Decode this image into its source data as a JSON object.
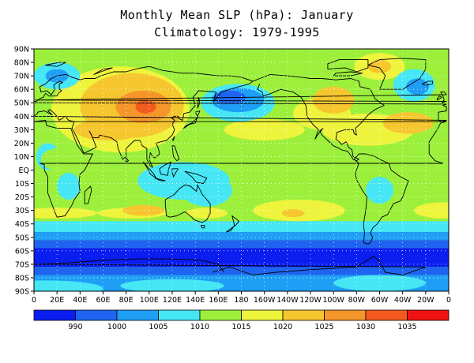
{
  "title_line1": "Monthly Mean SLP (hPa): January",
  "title_line2": "Climatology: 1979-1995",
  "chart_data": {
    "type": "heatmap",
    "title": "Monthly Mean SLP (hPa): January Climatology: 1979-1995",
    "lat_ticks": [
      "90N",
      "80N",
      "70N",
      "60N",
      "50N",
      "40N",
      "30N",
      "20N",
      "10N",
      "EQ",
      "10S",
      "20S",
      "30S",
      "40S",
      "50S",
      "60S",
      "70S",
      "80S",
      "90S"
    ],
    "lon_ticks": [
      "0",
      "20E",
      "40E",
      "60E",
      "80E",
      "100E",
      "120E",
      "140E",
      "160E",
      "180",
      "160W",
      "140W",
      "120W",
      "100W",
      "80W",
      "60W",
      "40W",
      "20W",
      "0"
    ],
    "xlim": [
      0,
      360
    ],
    "ylim": [
      -90,
      90
    ],
    "grid": true,
    "colorbar": {
      "levels": [
        "990",
        "1000",
        "1005",
        "1010",
        "1015",
        "1020",
        "1025",
        "1030",
        "1035"
      ],
      "colors": [
        "#0a1ef0",
        "#1e64f0",
        "#1e9ef5",
        "#46e6f5",
        "#9cf03c",
        "#eef33c",
        "#f6c62e",
        "#f4962a",
        "#f35b1e",
        "#f01212"
      ]
    }
  }
}
